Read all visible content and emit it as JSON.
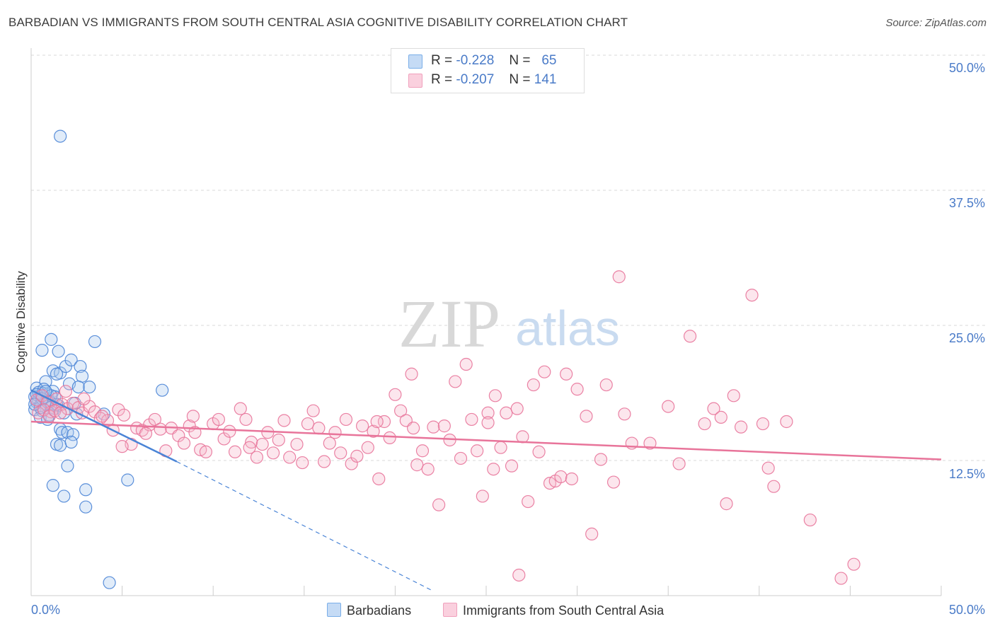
{
  "title": "BARBADIAN VS IMMIGRANTS FROM SOUTH CENTRAL ASIA COGNITIVE DISABILITY CORRELATION CHART",
  "source": "Source: ZipAtlas.com",
  "watermark": {
    "zip": "ZIP",
    "atlas": "atlas"
  },
  "legend": {
    "rows": [
      {
        "r_label": "R =",
        "r_value": "-0.228",
        "n_label": "N =",
        "n_value": "65",
        "color": "#7aaee8"
      },
      {
        "r_label": "R =",
        "r_value": "-0.207",
        "n_label": "N =",
        "n_value": "141",
        "color": "#f0a0bc"
      }
    ]
  },
  "bottom_legend": [
    "Barbadians",
    "Immigrants from South Central Asia"
  ],
  "axis": {
    "ylabel": "Cognitive Disability",
    "x_min_label": "0.0%",
    "x_max_label": "50.0%",
    "y_ticks": [
      "12.5%",
      "25.0%",
      "37.5%",
      "50.0%"
    ]
  },
  "chart_data": {
    "type": "scatter",
    "xlabel": "",
    "ylabel": "Cognitive Disability",
    "xlim": [
      0,
      50
    ],
    "ylim": [
      0,
      50
    ],
    "grid": true,
    "colors": {
      "barbadians": "#4a84d6",
      "immigrants": "#e8749a"
    },
    "series": [
      {
        "name": "Barbadians",
        "trend": {
          "x0": 0,
          "y0": 19.0,
          "x1": 8.0,
          "y1": 12.4,
          "dashed_to": {
            "x": 22,
            "y": 0.5
          }
        },
        "points": [
          [
            1.6,
            42.5
          ],
          [
            0.6,
            22.7
          ],
          [
            1.1,
            23.7
          ],
          [
            1.5,
            22.6
          ],
          [
            3.5,
            23.5
          ],
          [
            1.2,
            20.8
          ],
          [
            1.6,
            20.6
          ],
          [
            1.9,
            21.2
          ],
          [
            2.2,
            21.8
          ],
          [
            2.7,
            21.2
          ],
          [
            1.4,
            20.5
          ],
          [
            2.8,
            20.3
          ],
          [
            0.8,
            19.8
          ],
          [
            0.3,
            19.2
          ],
          [
            0.6,
            18.7
          ],
          [
            0.9,
            18.6
          ],
          [
            1.2,
            18.9
          ],
          [
            0.2,
            18.4
          ],
          [
            0.4,
            18.1
          ],
          [
            0.7,
            18.3
          ],
          [
            1.0,
            18.0
          ],
          [
            0.3,
            17.9
          ],
          [
            0.5,
            17.6
          ],
          [
            0.8,
            17.7
          ],
          [
            1.1,
            17.4
          ],
          [
            0.2,
            17.2
          ],
          [
            0.6,
            17.1
          ],
          [
            1.3,
            17.3
          ],
          [
            1.5,
            17.6
          ],
          [
            2.1,
            19.6
          ],
          [
            2.6,
            19.3
          ],
          [
            3.2,
            19.3
          ],
          [
            7.2,
            19.0
          ],
          [
            0.5,
            16.5
          ],
          [
            1.0,
            16.7
          ],
          [
            2.5,
            16.8
          ],
          [
            4.0,
            16.8
          ],
          [
            1.6,
            15.4
          ],
          [
            1.7,
            15.1
          ],
          [
            2.0,
            15.1
          ],
          [
            2.3,
            14.9
          ],
          [
            1.4,
            14.0
          ],
          [
            1.6,
            13.9
          ],
          [
            2.2,
            14.2
          ],
          [
            2.0,
            12.0
          ],
          [
            1.2,
            10.2
          ],
          [
            1.8,
            9.2
          ],
          [
            3.0,
            9.8
          ],
          [
            3.0,
            8.2
          ],
          [
            5.3,
            10.7
          ],
          [
            4.3,
            1.2
          ],
          [
            0.4,
            18.8
          ],
          [
            0.7,
            19.1
          ],
          [
            1.0,
            17.9
          ],
          [
            1.3,
            18.4
          ],
          [
            0.9,
            16.3
          ],
          [
            1.8,
            16.9
          ],
          [
            0.5,
            17.4
          ],
          [
            0.3,
            18.6
          ],
          [
            1.1,
            18.5
          ],
          [
            2.4,
            17.8
          ],
          [
            0.6,
            18.2
          ],
          [
            1.4,
            17.7
          ],
          [
            0.2,
            17.7
          ],
          [
            0.8,
            18.9
          ]
        ]
      },
      {
        "name": "Immigrants from South Central Asia",
        "trend": {
          "x0": 0,
          "y0": 16.1,
          "x1": 50,
          "y1": 12.6
        },
        "points": [
          [
            0.3,
            18.1
          ],
          [
            0.6,
            18.5
          ],
          [
            0.9,
            17.9
          ],
          [
            1.1,
            17.0
          ],
          [
            1.4,
            18.2
          ],
          [
            1.7,
            17.7
          ],
          [
            2.0,
            17.3
          ],
          [
            2.3,
            17.8
          ],
          [
            2.6,
            17.4
          ],
          [
            0.4,
            16.9
          ],
          [
            0.7,
            17.2
          ],
          [
            1.0,
            16.6
          ],
          [
            1.3,
            17.1
          ],
          [
            1.6,
            16.9
          ],
          [
            1.9,
            18.9
          ],
          [
            2.8,
            16.9
          ],
          [
            3.2,
            17.5
          ],
          [
            3.5,
            17.0
          ],
          [
            3.8,
            16.4
          ],
          [
            4.2,
            16.2
          ],
          [
            4.5,
            15.3
          ],
          [
            4.8,
            17.2
          ],
          [
            5.1,
            16.7
          ],
          [
            5.5,
            14.0
          ],
          [
            5.8,
            15.5
          ],
          [
            6.1,
            15.3
          ],
          [
            6.5,
            15.8
          ],
          [
            6.8,
            16.3
          ],
          [
            7.1,
            15.4
          ],
          [
            7.4,
            13.4
          ],
          [
            7.7,
            15.5
          ],
          [
            8.1,
            14.8
          ],
          [
            8.4,
            14.1
          ],
          [
            8.7,
            15.7
          ],
          [
            9.0,
            15.1
          ],
          [
            9.3,
            13.5
          ],
          [
            9.6,
            13.3
          ],
          [
            10.0,
            15.9
          ],
          [
            10.3,
            16.3
          ],
          [
            10.6,
            14.5
          ],
          [
            10.9,
            15.2
          ],
          [
            11.2,
            13.3
          ],
          [
            11.5,
            17.3
          ],
          [
            11.8,
            16.3
          ],
          [
            12.1,
            14.2
          ],
          [
            12.4,
            12.8
          ],
          [
            12.7,
            14.0
          ],
          [
            13.0,
            15.1
          ],
          [
            13.3,
            13.2
          ],
          [
            13.6,
            14.4
          ],
          [
            13.9,
            16.2
          ],
          [
            14.2,
            12.8
          ],
          [
            14.6,
            14.0
          ],
          [
            14.9,
            12.3
          ],
          [
            15.2,
            15.9
          ],
          [
            15.5,
            17.1
          ],
          [
            15.8,
            15.5
          ],
          [
            16.1,
            12.4
          ],
          [
            16.4,
            14.1
          ],
          [
            16.7,
            15.1
          ],
          [
            17.0,
            13.2
          ],
          [
            17.3,
            16.3
          ],
          [
            17.6,
            12.2
          ],
          [
            17.9,
            12.9
          ],
          [
            18.2,
            15.7
          ],
          [
            18.5,
            13.7
          ],
          [
            18.8,
            15.2
          ],
          [
            19.1,
            10.8
          ],
          [
            19.4,
            16.1
          ],
          [
            19.7,
            14.6
          ],
          [
            20.0,
            18.6
          ],
          [
            20.3,
            17.1
          ],
          [
            20.6,
            16.2
          ],
          [
            20.9,
            20.5
          ],
          [
            21.2,
            12.1
          ],
          [
            21.5,
            13.4
          ],
          [
            21.8,
            11.7
          ],
          [
            22.1,
            15.6
          ],
          [
            22.4,
            8.4
          ],
          [
            22.7,
            15.7
          ],
          [
            23.0,
            14.4
          ],
          [
            23.3,
            19.8
          ],
          [
            23.6,
            12.7
          ],
          [
            23.9,
            21.4
          ],
          [
            24.2,
            16.3
          ],
          [
            24.5,
            13.4
          ],
          [
            24.8,
            9.2
          ],
          [
            25.1,
            16.9
          ],
          [
            25.4,
            11.7
          ],
          [
            25.8,
            13.7
          ],
          [
            26.1,
            16.9
          ],
          [
            26.4,
            12.0
          ],
          [
            26.7,
            17.3
          ],
          [
            27.0,
            14.7
          ],
          [
            27.3,
            8.7
          ],
          [
            27.6,
            19.5
          ],
          [
            27.9,
            13.3
          ],
          [
            28.2,
            20.7
          ],
          [
            28.5,
            10.4
          ],
          [
            28.8,
            10.6
          ],
          [
            29.1,
            11.0
          ],
          [
            29.4,
            20.5
          ],
          [
            29.7,
            10.8
          ],
          [
            30.0,
            19.1
          ],
          [
            30.5,
            16.6
          ],
          [
            30.8,
            5.7
          ],
          [
            31.3,
            12.6
          ],
          [
            31.6,
            19.5
          ],
          [
            32.0,
            10.5
          ],
          [
            32.3,
            29.5
          ],
          [
            32.6,
            16.8
          ],
          [
            33.0,
            14.1
          ],
          [
            34.0,
            14.1
          ],
          [
            35.0,
            17.5
          ],
          [
            35.6,
            12.2
          ],
          [
            36.2,
            24.0
          ],
          [
            37.0,
            15.9
          ],
          [
            37.5,
            17.3
          ],
          [
            37.9,
            16.5
          ],
          [
            38.2,
            8.5
          ],
          [
            38.6,
            18.5
          ],
          [
            39.0,
            15.6
          ],
          [
            39.6,
            27.8
          ],
          [
            40.2,
            15.9
          ],
          [
            40.5,
            11.8
          ],
          [
            40.8,
            10.1
          ],
          [
            41.5,
            16.1
          ],
          [
            42.8,
            7.0
          ],
          [
            44.5,
            1.6
          ],
          [
            45.2,
            2.9
          ],
          [
            26.8,
            1.9
          ],
          [
            25.5,
            18.5
          ],
          [
            25.1,
            16.0
          ],
          [
            8.9,
            16.6
          ],
          [
            6.3,
            15.0
          ],
          [
            3.9,
            16.6
          ],
          [
            2.9,
            18.2
          ],
          [
            19.0,
            16.1
          ],
          [
            12.0,
            13.7
          ],
          [
            21.0,
            15.5
          ],
          [
            5.0,
            13.8
          ]
        ]
      }
    ]
  }
}
